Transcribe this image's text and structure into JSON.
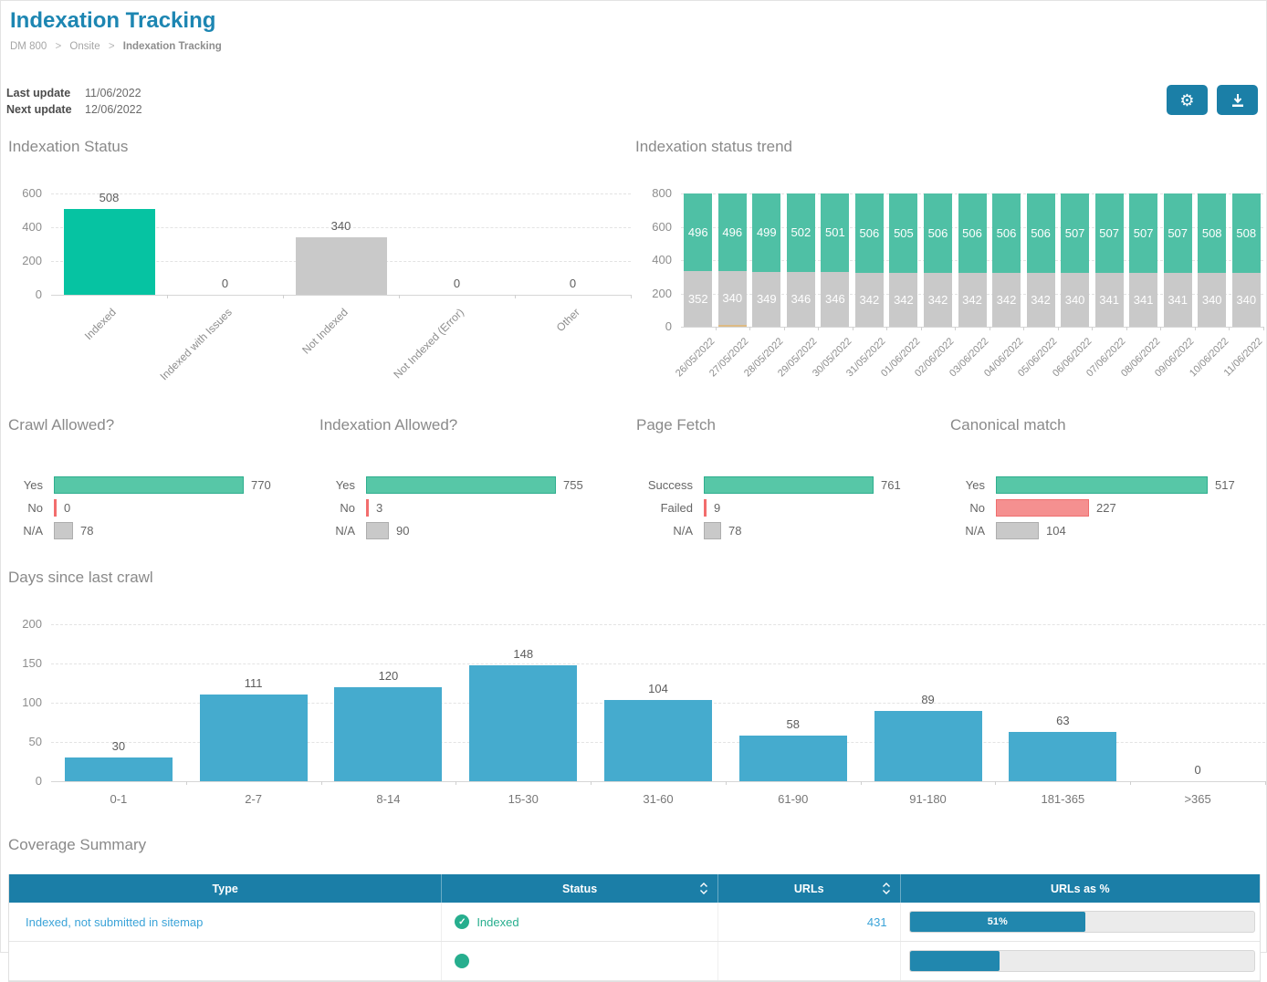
{
  "page": {
    "title": "Indexation Tracking",
    "breadcrumb": {
      "items": [
        "DM 800",
        "Onsite"
      ],
      "current": "Indexation Tracking",
      "separator": ">"
    },
    "updates": {
      "last_label": "Last update",
      "last_value": "11/06/2022",
      "next_label": "Next update",
      "next_value": "12/06/2022"
    }
  },
  "toolbar": {
    "buttons": [
      {
        "name": "settings",
        "icon": "gear-icon"
      },
      {
        "name": "export",
        "icon": "download-icon"
      }
    ]
  },
  "colors": {
    "accent_teal": "#1b7ea7",
    "title_blue": "#1d86b2",
    "indexed_bright_green": "#06c3a2",
    "trend_green": "#4fc0a5",
    "neutral_gray": "#c9c9c9",
    "trend_other_orange": "#ddba84",
    "hbar_green": "#57c7a7",
    "hbar_red": "#f59090",
    "days_blue": "#45abce",
    "status_green_text": "#27ae8e",
    "link_blue": "#3aa3d8",
    "progress_fill": "#2187ae"
  },
  "chart_data": [
    {
      "id": "status",
      "type": "bar",
      "title": "Indexation Status",
      "categories": [
        "Indexed",
        "Indexed with Issues",
        "Not Indexed",
        "Not Indexed (Error)",
        "Other"
      ],
      "values": [
        508,
        0,
        340,
        0,
        0
      ],
      "bar_colors": [
        "#06c3a2",
        "#c9c9c9",
        "#c9c9c9",
        "#c9c9c9",
        "#c9c9c9"
      ],
      "ylim": [
        0,
        600
      ],
      "yticks": [
        0,
        200,
        400,
        600
      ],
      "grid": "dashed-horizontal",
      "legend": "none"
    },
    {
      "id": "trend",
      "type": "bar",
      "stacked": true,
      "title": "Indexation status trend",
      "categories": [
        "26/05/2022",
        "27/05/2022",
        "28/05/2022",
        "29/05/2022",
        "30/05/2022",
        "31/05/2022",
        "01/06/2022",
        "02/06/2022",
        "03/06/2022",
        "04/06/2022",
        "05/06/2022",
        "06/06/2022",
        "07/06/2022",
        "08/06/2022",
        "09/06/2022",
        "10/06/2022",
        "11/06/2022"
      ],
      "series": [
        {
          "name": "Indexed",
          "color": "#4fc0a5",
          "stack_position": "top",
          "values": [
            496,
            496,
            499,
            502,
            501,
            506,
            505,
            506,
            506,
            506,
            506,
            507,
            507,
            507,
            507,
            508,
            508
          ]
        },
        {
          "name": "Not Indexed",
          "color": "#c9c9c9",
          "stack_position": "middle",
          "values": [
            352,
            340,
            349,
            346,
            346,
            342,
            342,
            342,
            342,
            342,
            342,
            340,
            341,
            341,
            341,
            340,
            340
          ]
        },
        {
          "name": "Other",
          "color": "#ddba84",
          "stack_position": "bottom",
          "values": [
            0,
            12,
            0,
            0,
            0,
            0,
            0,
            0,
            0,
            0,
            0,
            0,
            0,
            0,
            0,
            0,
            0
          ]
        }
      ],
      "ylim": [
        0,
        800
      ],
      "yticks": [
        0,
        200,
        400,
        600,
        800
      ],
      "value_labels": "inside-white",
      "legend": "none"
    },
    {
      "id": "crawl",
      "type": "bar",
      "orientation": "horizontal",
      "title": "Crawl Allowed?",
      "categories": [
        "Yes",
        "No",
        "N/A"
      ],
      "values": [
        770,
        0,
        78
      ],
      "bar_styles": [
        "green",
        "red",
        "gray"
      ]
    },
    {
      "id": "indexation",
      "type": "bar",
      "orientation": "horizontal",
      "title": "Indexation Allowed?",
      "categories": [
        "Yes",
        "No",
        "N/A"
      ],
      "values": [
        755,
        3,
        90
      ],
      "bar_styles": [
        "green",
        "red",
        "gray"
      ]
    },
    {
      "id": "fetch",
      "type": "bar",
      "orientation": "horizontal",
      "title": "Page Fetch",
      "categories": [
        "Success",
        "Failed",
        "N/A"
      ],
      "values": [
        761,
        9,
        78
      ],
      "bar_styles": [
        "green",
        "red",
        "gray"
      ]
    },
    {
      "id": "canonical",
      "type": "bar",
      "orientation": "horizontal",
      "title": "Canonical match",
      "categories": [
        "Yes",
        "No",
        "N/A"
      ],
      "values": [
        517,
        227,
        104
      ],
      "bar_styles": [
        "green",
        "red",
        "gray"
      ]
    },
    {
      "id": "days",
      "type": "bar",
      "title": "Days since last crawl",
      "categories": [
        "0-1",
        "2-7",
        "8-14",
        "15-30",
        "31-60",
        "61-90",
        "91-180",
        "181-365",
        ">365"
      ],
      "values": [
        30,
        111,
        120,
        148,
        104,
        58,
        89,
        63,
        0
      ],
      "bar_color": "#45abce",
      "ylim": [
        0,
        200
      ],
      "yticks": [
        0,
        50,
        100,
        150,
        200
      ],
      "grid": "dashed-horizontal",
      "legend": "none"
    }
  ],
  "coverage": {
    "title": "Coverage Summary",
    "columns": [
      {
        "label": "Type",
        "sortable": false
      },
      {
        "label": "Status",
        "sortable": true
      },
      {
        "label": "URLs",
        "sortable": true
      },
      {
        "label": "URLs as %",
        "sortable": false
      }
    ],
    "rows": [
      {
        "type": "Indexed, not submitted in sitemap",
        "status": "Indexed",
        "urls": "431",
        "pct": 51,
        "pct_label": "51%"
      }
    ],
    "partial_row": {
      "status_icon": "check-circle",
      "pct": 26
    }
  }
}
